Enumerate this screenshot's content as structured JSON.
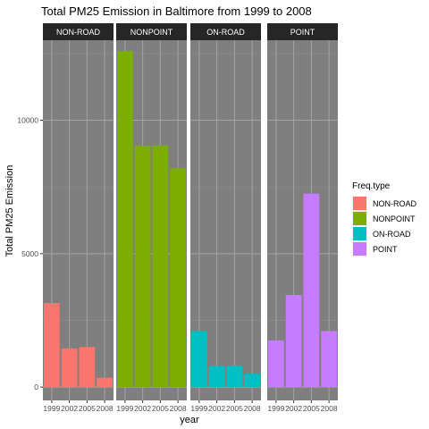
{
  "chart_data": {
    "type": "bar",
    "title": "Total PM25 Emission in Baltimore from 1999 to 2008",
    "xlabel": "year",
    "ylabel": "Total PM25 Emission",
    "ylim": [
      -500,
      13000
    ],
    "y_ticks": [
      0,
      5000,
      10000
    ],
    "y_tick_labels": [
      "0",
      "5000",
      "10000"
    ],
    "categories": [
      "1999",
      "2002",
      "2005",
      "2008"
    ],
    "grid": true,
    "facet_by": "Freq.type",
    "legend": {
      "title": "Freq.type",
      "placement": "right"
    },
    "series": [
      {
        "name": "NON-ROAD",
        "color": "#F8766D",
        "values": [
          3150,
          1450,
          1500,
          350
        ]
      },
      {
        "name": "NONPOINT",
        "color": "#7CAE00",
        "values": [
          12600,
          9050,
          9050,
          8200
        ]
      },
      {
        "name": "ON-ROAD",
        "color": "#00BFC4",
        "values": [
          2100,
          800,
          800,
          500
        ]
      },
      {
        "name": "POINT",
        "color": "#C77CFF",
        "values": [
          1750,
          3450,
          7250,
          2100
        ]
      }
    ]
  }
}
